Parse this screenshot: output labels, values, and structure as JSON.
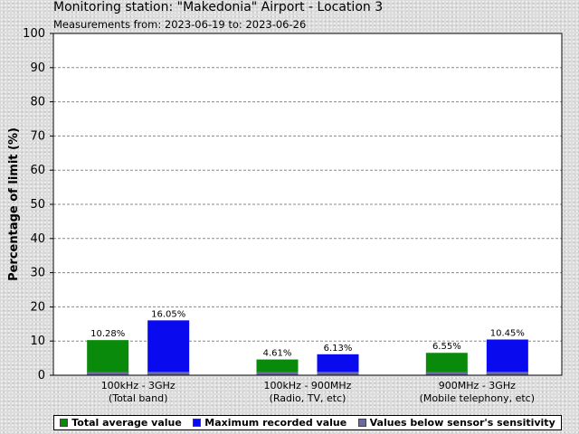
{
  "header": {
    "title": "Monitoring station: \"Makedonia\" Airport - Location 3",
    "subtitle": "Measurements from: 2023-06-19 to: 2023-06-26"
  },
  "chart_data": {
    "type": "bar",
    "ylabel": "Percentage of limit (%)",
    "ylim": [
      0,
      100
    ],
    "yticks": [
      0,
      10,
      20,
      30,
      40,
      50,
      60,
      70,
      80,
      90,
      100
    ],
    "grid": true,
    "categories": [
      {
        "line1": "100kHz - 3GHz",
        "line2": "(Total band)"
      },
      {
        "line1": "100kHz - 900MHz",
        "line2": "(Radio, TV, etc)"
      },
      {
        "line1": "900MHz - 3GHz",
        "line2": "(Mobile telephony, etc)"
      }
    ],
    "series": [
      {
        "name": "Total average value",
        "color": "#0a8a0a",
        "values": [
          10.28,
          4.61,
          6.55
        ],
        "labels": [
          "10.28%",
          "4.61%",
          "6.55%"
        ]
      },
      {
        "name": "Maximum recorded value",
        "color": "#0a0aee",
        "values": [
          16.05,
          6.13,
          10.45
        ],
        "labels": [
          "16.05%",
          "6.13%",
          "10.45%"
        ]
      }
    ],
    "sensitivity": {
      "name": "Values below sensor's sensitivity",
      "color": "#6a6aa0",
      "value": 1
    },
    "legend_position": "bottom"
  }
}
